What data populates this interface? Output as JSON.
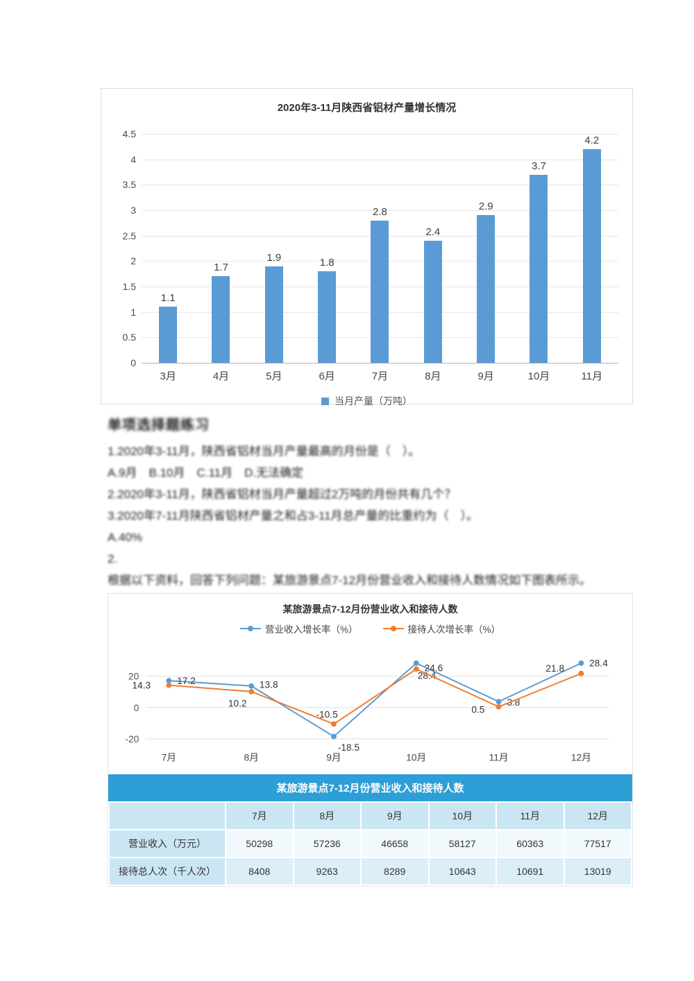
{
  "chart_data": [
    {
      "type": "bar",
      "title": "2020年3-11月陕西省铝材产量增长情况",
      "categories": [
        "3月",
        "4月",
        "5月",
        "6月",
        "7月",
        "8月",
        "9月",
        "10月",
        "11月"
      ],
      "values": [
        1.1,
        1.7,
        1.9,
        1.8,
        2.8,
        2.4,
        2.9,
        3.7,
        4.2
      ],
      "legend": "当月产量（万吨）",
      "xlabel": "",
      "ylabel": "",
      "ylim": [
        0,
        4.5
      ],
      "ytick_step": 0.5,
      "grid": true,
      "legend_position": "bottom",
      "bar_color": "#5B9BD5"
    },
    {
      "type": "line",
      "title": "某旅游景点7-12月份营业收入和接待人数",
      "categories": [
        "7月",
        "8月",
        "9月",
        "10月",
        "11月",
        "12月"
      ],
      "series": [
        {
          "name": "营业收入增长率（%）",
          "color": "#5B9BD5",
          "values": [
            17.2,
            13.8,
            -18.5,
            28.4,
            3.8,
            28.4
          ]
        },
        {
          "name": "接待人次增长率（%）",
          "color": "#ED7D31",
          "values": [
            14.3,
            10.2,
            -10.5,
            24.6,
            0.5,
            21.8
          ]
        }
      ],
      "yticks": [
        20,
        0,
        -20
      ],
      "ylim": [
        -25,
        32
      ],
      "grid": true,
      "legend_position": "top"
    }
  ],
  "question": {
    "heading": "单项选择题练习",
    "lines": [
      "1.2020年3-11月，陕西省铝材当月产量最高的月份是（　）。",
      "A.9月　B.10月　C.11月　D.无法确定",
      "2.2020年3-11月，陕西省铝材当月产量超过2万吨的月份共有几个？",
      "3.2020年7-11月陕西省铝材产量之和占3-11月总产量的比重约为（　）。",
      "A.40%",
      "2.",
      "根据以下资料，回答下列问题：某旅游景点7-12月份营业收入和接待人数情况如下图表所示。"
    ]
  },
  "table": {
    "title": "某旅游景点7-12月份营业收入和接待人数",
    "columns": [
      "",
      "7月",
      "8月",
      "9月",
      "10月",
      "11月",
      "12月"
    ],
    "rows": [
      {
        "label": "营业收入（万元）",
        "values": [
          50298,
          57236,
          46658,
          58127,
          60363,
          77517
        ]
      },
      {
        "label": "接待总人次（千人次）",
        "values": [
          8408,
          9263,
          8289,
          10643,
          10691,
          13019
        ]
      }
    ]
  }
}
